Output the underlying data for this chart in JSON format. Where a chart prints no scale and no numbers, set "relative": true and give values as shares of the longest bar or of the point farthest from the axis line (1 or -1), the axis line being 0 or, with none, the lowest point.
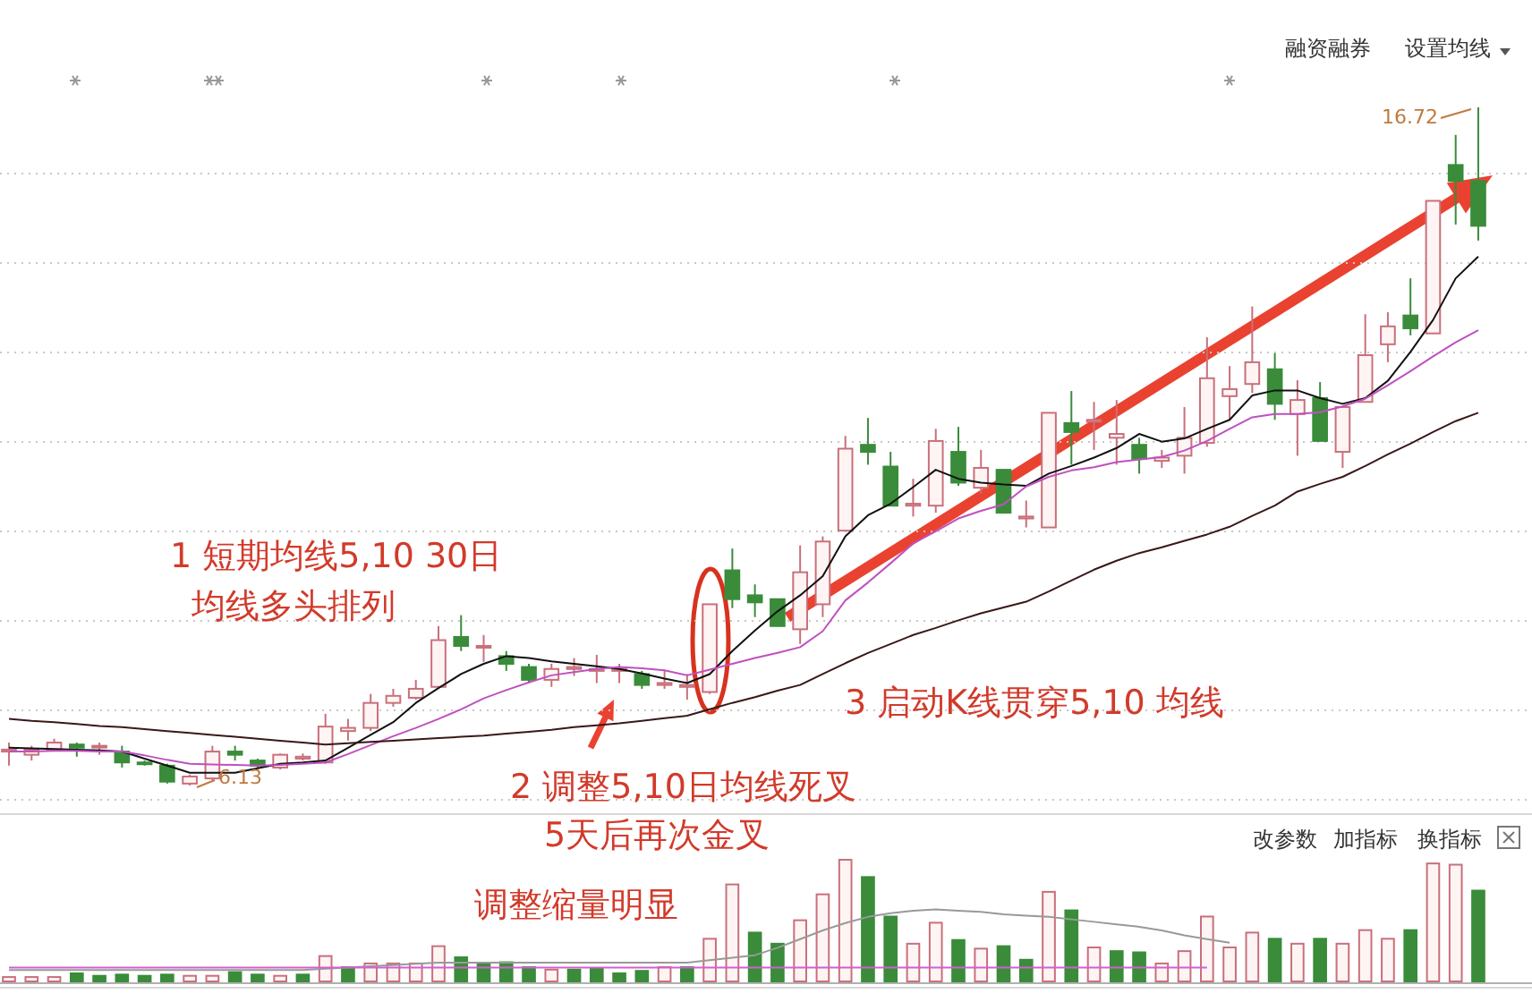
{
  "chart_data": [
    {
      "type": "candlestick",
      "categories": [
        null,
        null,
        null,
        null,
        null,
        null,
        null,
        null,
        null,
        null,
        null,
        null,
        null,
        null,
        null,
        null,
        null,
        null,
        null,
        null,
        null,
        null,
        null,
        null,
        null,
        null,
        null,
        null,
        null,
        null,
        null,
        null,
        null,
        null,
        null,
        null,
        null,
        null,
        null,
        null,
        null,
        null,
        null,
        null,
        null,
        null,
        null,
        null,
        null,
        null,
        null,
        null,
        null,
        null,
        null,
        null,
        null,
        null,
        null,
        null,
        null,
        null,
        null,
        null,
        null,
        null
      ],
      "ohlc": [
        [
          6.66,
          6.8,
          6.44,
          6.69
        ],
        [
          6.61,
          6.75,
          6.52,
          6.69
        ],
        [
          6.69,
          6.86,
          6.66,
          6.8
        ],
        [
          6.77,
          6.8,
          6.58,
          6.72
        ],
        [
          6.75,
          6.8,
          6.61,
          6.75
        ],
        [
          6.66,
          6.75,
          6.41,
          6.49
        ],
        [
          6.49,
          6.52,
          6.44,
          6.47
        ],
        [
          6.44,
          6.47,
          6.16,
          6.19
        ],
        [
          6.16,
          6.3,
          6.13,
          6.27
        ],
        [
          6.24,
          6.75,
          6.21,
          6.66
        ],
        [
          6.66,
          6.75,
          6.52,
          6.61
        ],
        [
          6.52,
          6.55,
          6.41,
          6.44
        ],
        [
          6.41,
          6.63,
          6.38,
          6.61
        ],
        [
          6.55,
          6.63,
          6.52,
          6.58
        ],
        [
          6.49,
          7.25,
          6.47,
          7.05
        ],
        [
          6.98,
          7.17,
          6.83,
          7.03
        ],
        [
          7.03,
          7.56,
          6.98,
          7.42
        ],
        [
          7.42,
          7.64,
          7.36,
          7.53
        ],
        [
          7.5,
          7.78,
          7.47,
          7.64
        ],
        [
          7.67,
          8.62,
          7.67,
          8.4
        ],
        [
          8.45,
          8.79,
          8.23,
          8.31
        ],
        [
          8.29,
          8.48,
          8.06,
          8.31
        ],
        [
          8.15,
          8.23,
          7.92,
          8.03
        ],
        [
          7.98,
          8.03,
          7.73,
          7.78
        ],
        [
          7.78,
          8.03,
          7.67,
          7.95
        ],
        [
          7.95,
          8.12,
          7.84,
          7.98
        ],
        [
          7.92,
          8.17,
          7.73,
          7.95
        ],
        [
          7.95,
          8.03,
          7.73,
          7.92
        ],
        [
          7.87,
          7.92,
          7.64,
          7.7
        ],
        [
          7.7,
          7.92,
          7.64,
          7.73
        ],
        [
          7.67,
          7.87,
          7.47,
          7.7
        ],
        [
          7.59,
          8.96,
          7.56,
          8.96
        ],
        [
          9.49,
          9.83,
          8.9,
          9.04
        ],
        [
          9.1,
          9.27,
          8.76,
          8.99
        ],
        [
          9.04,
          9.04,
          8.62,
          8.62
        ],
        [
          8.57,
          9.88,
          8.34,
          9.46
        ],
        [
          8.96,
          10.02,
          8.76,
          9.94
        ],
        [
          10.11,
          11.59,
          10.11,
          11.39
        ],
        [
          11.45,
          11.87,
          11.14,
          11.34
        ],
        [
          11.11,
          11.34,
          10.5,
          10.5
        ],
        [
          10.53,
          10.92,
          10.33,
          10.5
        ],
        [
          10.5,
          11.7,
          10.39,
          11.51
        ],
        [
          11.34,
          11.73,
          10.81,
          10.86
        ],
        [
          10.78,
          11.37,
          10.69,
          11.09
        ],
        [
          11.06,
          11.06,
          10.39,
          10.39
        ],
        [
          10.3,
          10.58,
          10.16,
          10.33
        ],
        [
          10.16,
          11.95,
          10.16,
          11.95
        ],
        [
          11.79,
          12.29,
          11.14,
          11.65
        ],
        [
          11.84,
          12.12,
          11.37,
          11.81
        ],
        [
          11.56,
          12.15,
          11.14,
          11.62
        ],
        [
          11.45,
          11.56,
          11.0,
          11.23
        ],
        [
          11.2,
          11.37,
          11.09,
          11.25
        ],
        [
          11.28,
          12.04,
          11.0,
          11.56
        ],
        [
          11.48,
          13.13,
          11.42,
          12.49
        ],
        [
          12.21,
          12.68,
          11.84,
          12.32
        ],
        [
          12.4,
          13.61,
          12.26,
          12.74
        ],
        [
          12.63,
          12.88,
          11.84,
          12.09
        ],
        [
          11.93,
          12.46,
          11.28,
          12.15
        ],
        [
          12.18,
          12.43,
          11.51,
          11.51
        ],
        [
          11.34,
          12.04,
          11.09,
          12.04
        ],
        [
          12.12,
          13.49,
          12.12,
          12.85
        ],
        [
          13.02,
          13.52,
          12.74,
          13.3
        ],
        [
          13.47,
          14.05,
          13.16,
          13.27
        ],
        [
          13.19,
          15.26,
          13.19,
          15.26
        ],
        [
          15.82,
          16.29,
          14.89,
          15.57
        ],
        [
          15.57,
          16.72,
          14.64,
          14.87
        ]
      ],
      "colors": [
        "#c8707a",
        "#c8707a",
        "#c8707a",
        "#3a8c3a",
        "#c8707a",
        "#3a8c3a",
        "#3a8c3a",
        "#3a8c3a",
        "#c8707a",
        "#c8707a",
        "#3a8c3a",
        "#3a8c3a",
        "#c8707a",
        "#c8707a",
        "#c8707a",
        "#c8707a",
        "#c8707a",
        "#c8707a",
        "#c8707a",
        "#c8707a",
        "#3a8c3a",
        "#c8707a",
        "#3a8c3a",
        "#3a8c3a",
        "#c8707a",
        "#c8707a",
        "#c8707a",
        "#c8707a",
        "#3a8c3a",
        "#c8707a",
        "#c8707a",
        "#c8707a",
        "#3a8c3a",
        "#3a8c3a",
        "#3a8c3a",
        "#c8707a",
        "#c8707a",
        "#c8707a",
        "#3a8c3a",
        "#3a8c3a",
        "#c8707a",
        "#c8707a",
        "#3a8c3a",
        "#c8707a",
        "#3a8c3a",
        "#c8707a",
        "#c8707a",
        "#3a8c3a",
        "#c8707a",
        "#c8707a",
        "#3a8c3a",
        "#c8707a",
        "#c8707a",
        "#c8707a",
        "#c8707a",
        "#c8707a",
        "#3a8c3a",
        "#c8707a",
        "#3a8c3a",
        "#c8707a",
        "#c8707a",
        "#c8707a",
        "#3a8c3a",
        "#c8707a",
        "#3a8c3a",
        "#3a8c3a"
      ],
      "series": [
        {
          "type": "line",
          "color": "#111111",
          "values": [
            6.72,
            6.71,
            6.7,
            6.69,
            6.68,
            6.66,
            6.55,
            6.44,
            6.33,
            6.33,
            6.33,
            6.4,
            6.47,
            6.49,
            6.52,
            6.72,
            6.92,
            7.12,
            7.42,
            7.65,
            7.87,
            8.03,
            8.15,
            8.12,
            8.07,
            8.03,
            7.99,
            7.95,
            7.88,
            7.8,
            7.73,
            7.87,
            8.23,
            8.55,
            8.85,
            9.1,
            9.4,
            10.02,
            10.35,
            10.53,
            10.79,
            11.06,
            10.92,
            10.86,
            10.83,
            10.81,
            11.0,
            11.12,
            11.25,
            11.4,
            11.62,
            11.5,
            11.55,
            11.7,
            11.84,
            12.22,
            12.3,
            12.3,
            12.18,
            12.09,
            12.18,
            12.45,
            12.9,
            13.4,
            14.05,
            14.39
          ]
        },
        {
          "type": "line",
          "color": "#c050c0",
          "values": [
            6.66,
            6.66,
            6.67,
            6.67,
            6.66,
            6.66,
            6.6,
            6.53,
            6.47,
            6.46,
            6.45,
            6.44,
            6.45,
            6.47,
            6.49,
            6.62,
            6.76,
            6.9,
            7.03,
            7.17,
            7.32,
            7.49,
            7.62,
            7.74,
            7.85,
            7.9,
            7.95,
            7.98,
            7.96,
            7.93,
            7.85,
            7.94,
            8.03,
            8.12,
            8.2,
            8.29,
            8.54,
            9.02,
            9.3,
            9.6,
            9.91,
            10.1,
            10.3,
            10.42,
            10.52,
            10.8,
            10.95,
            11.05,
            11.1,
            11.18,
            11.22,
            11.26,
            11.36,
            11.51,
            11.7,
            11.88,
            11.93,
            11.93,
            11.96,
            12.05,
            12.17,
            12.38,
            12.6,
            12.83,
            13.05,
            13.24
          ]
        },
        {
          "type": "line",
          "color": "#3a1818",
          "values": [
            7.17,
            7.14,
            7.12,
            7.09,
            7.06,
            7.04,
            7.01,
            6.98,
            6.95,
            6.92,
            6.89,
            6.86,
            6.83,
            6.8,
            6.77,
            6.79,
            6.81,
            6.83,
            6.85,
            6.87,
            6.89,
            6.91,
            6.94,
            6.97,
            7.0,
            7.04,
            7.07,
            7.1,
            7.14,
            7.18,
            7.22,
            7.32,
            7.42,
            7.51,
            7.61,
            7.7,
            7.87,
            8.04,
            8.2,
            8.34,
            8.48,
            8.59,
            8.71,
            8.82,
            8.91,
            9.0,
            9.16,
            9.33,
            9.5,
            9.64,
            9.76,
            9.85,
            9.95,
            10.05,
            10.17,
            10.34,
            10.5,
            10.72,
            10.84,
            10.95,
            11.12,
            11.3,
            11.47,
            11.65,
            11.82,
            11.95
          ]
        }
      ],
      "grid": "y",
      "annotations": [
        "1 短期均线5,10 30日",
        "均线多头排列",
        "2 调整5,10日均线死叉",
        "5天后再次金叉",
        "3 启动K线贯穿5,10 均线",
        "融资融券",
        "设置均线",
        "16.72",
        "6.13"
      ]
    },
    {
      "type": "bar",
      "relative": true,
      "categories": [
        null,
        null,
        null,
        null,
        null,
        null,
        null,
        null,
        null,
        null,
        null,
        null,
        null,
        null,
        null,
        null,
        null,
        null,
        null,
        null,
        null,
        null,
        null,
        null,
        null,
        null,
        null,
        null,
        null,
        null,
        null,
        null,
        null,
        null,
        null,
        null,
        null,
        null,
        null,
        null,
        null,
        null,
        null,
        null,
        null,
        null,
        null,
        null,
        null,
        null,
        null,
        null,
        null,
        null,
        null,
        null,
        null,
        null,
        null,
        null,
        null,
        null,
        null,
        null,
        null,
        null
      ],
      "colors": [
        "#c8707a",
        "#c8707a",
        "#c8707a",
        "#3a8c3a",
        "#3a8c3a",
        "#3a8c3a",
        "#3a8c3a",
        "#3a8c3a",
        "#c8707a",
        "#c8707a",
        "#3a8c3a",
        "#3a8c3a",
        "#c8707a",
        "#3a8c3a",
        "#c8707a",
        "#3a8c3a",
        "#c8707a",
        "#c8707a",
        "#c8707a",
        "#c8707a",
        "#3a8c3a",
        "#3a8c3a",
        "#3a8c3a",
        "#3a8c3a",
        "#c8707a",
        "#3a8c3a",
        "#3a8c3a",
        "#3a8c3a",
        "#3a8c3a",
        "#c8707a",
        "#3a8c3a",
        "#c8707a",
        "#c8707a",
        "#3a8c3a",
        "#3a8c3a",
        "#c8707a",
        "#c8707a",
        "#c8707a",
        "#3a8c3a",
        "#3a8c3a",
        "#c8707a",
        "#c8707a",
        "#3a8c3a",
        "#c8707a",
        "#3a8c3a",
        "#3a8c3a",
        "#c8707a",
        "#3a8c3a",
        "#c8707a",
        "#3a8c3a",
        "#3a8c3a",
        "#c8707a",
        "#c8707a",
        "#c8707a",
        "#c8707a",
        "#c8707a",
        "#3a8c3a",
        "#c8707a",
        "#3a8c3a",
        "#c8707a",
        "#c8707a",
        "#c8707a",
        "#3a8c3a",
        "#c8707a",
        "#c8707a",
        "#3a8c3a"
      ],
      "values": [
        0.05,
        0.05,
        0.05,
        0.08,
        0.06,
        0.07,
        0.06,
        0.07,
        0.06,
        0.06,
        0.09,
        0.07,
        0.06,
        0.07,
        0.22,
        0.13,
        0.16,
        0.16,
        0.16,
        0.3,
        0.21,
        0.16,
        0.17,
        0.13,
        0.11,
        0.11,
        0.12,
        0.08,
        0.1,
        0.13,
        0.13,
        0.36,
        0.8,
        0.41,
        0.32,
        0.51,
        0.72,
        1,
        0.86,
        0.54,
        0.32,
        0.49,
        0.35,
        0.28,
        0.3,
        0.19,
        0.74,
        0.59,
        0.29,
        0.26,
        0.25,
        0.16,
        0.26,
        0.54,
        0.29,
        0.41,
        0.36,
        0.32,
        0.36,
        0.32,
        0.43,
        0.36,
        0.43,
        0.97,
        0.96,
        0.75
      ],
      "series": [
        {
          "type": "line",
          "color": "#999999",
          "values": [
            0.1,
            0.1,
            0.1,
            0.1,
            0.1,
            0.1,
            0.1,
            0.1,
            0.1,
            0.1,
            0.1,
            0.1,
            0.1,
            0.1,
            0.11,
            0.12,
            0.13,
            0.14,
            0.15,
            0.16,
            0.16,
            0.16,
            0.16,
            0.16,
            0.16,
            0.16,
            0.16,
            0.16,
            0.16,
            0.16,
            0.16,
            0.18,
            0.2,
            0.22,
            0.28,
            0.35,
            0.42,
            0.48,
            0.53,
            0.56,
            0.58,
            0.59,
            0.58,
            0.57,
            0.55,
            0.54,
            0.53,
            0.51,
            0.49,
            0.47,
            0.45,
            0.42,
            0.38,
            0.35,
            0.32,
            null,
            null,
            null,
            null,
            null,
            null,
            null,
            null,
            null,
            null,
            null
          ]
        },
        {
          "type": "line",
          "color": "#d060d0",
          "values": [
            0.12,
            0.12,
            0.12,
            0.12,
            0.12,
            0.12,
            0.12,
            0.12,
            0.12,
            0.12,
            0.12,
            0.12,
            0.12,
            0.12,
            0.12,
            0.12,
            0.12,
            0.12,
            0.12,
            0.12,
            0.12,
            0.12,
            0.12,
            0.12,
            0.12,
            0.12,
            0.12,
            0.12,
            0.12,
            0.12,
            0.12,
            0.12,
            0.12,
            0.12,
            0.12,
            0.12,
            0.12,
            0.12,
            0.12,
            0.12,
            0.12,
            0.12,
            0.12,
            0.12,
            0.12,
            0.12,
            0.12,
            0.12,
            0.12,
            0.12,
            0.12,
            0.12,
            0.12,
            0.12,
            null,
            null,
            null,
            null,
            null,
            null,
            null,
            null,
            null,
            null,
            null,
            null
          ]
        }
      ],
      "annotations": [
        "调整缩量明显",
        "改参数",
        "加指标",
        "换指标"
      ]
    }
  ]
}
